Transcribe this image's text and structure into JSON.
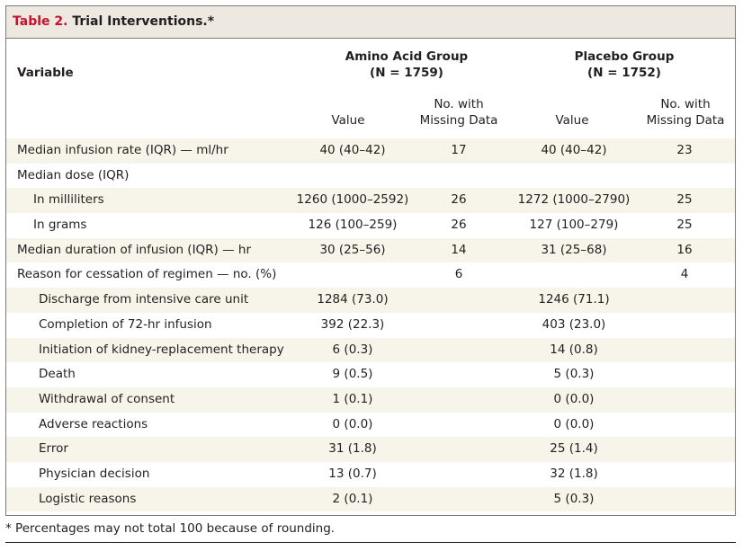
{
  "title": {
    "number": "Table 2.",
    "text": "Trial Interventions.*"
  },
  "columns": {
    "variable": "Variable",
    "amino_group": "Amino Acid Group",
    "amino_n": "(N = 1759)",
    "placebo_group": "Placebo Group",
    "placebo_n": "(N = 1752)",
    "value": "Value",
    "missing_line1": "No. with",
    "missing_line2": "Missing Data"
  },
  "rows": [
    {
      "label": "Median infusion rate (IQR) — ml/hr",
      "aa_value": "40 (40–42)",
      "aa_missing": "17",
      "pl_value": "40 (40–42)",
      "pl_missing": "23"
    },
    {
      "label": "Median dose (IQR)",
      "aa_value": "",
      "aa_missing": "",
      "pl_value": "",
      "pl_missing": ""
    },
    {
      "label": "In milliliters",
      "aa_value": "1260 (1000–2592)",
      "aa_missing": "26",
      "pl_value": "1272 (1000–2790)",
      "pl_missing": "25"
    },
    {
      "label": "In grams",
      "aa_value": "126 (100–259)",
      "aa_missing": "26",
      "pl_value": "127 (100–279)",
      "pl_missing": "25"
    },
    {
      "label": "Median duration of infusion (IQR) — hr",
      "aa_value": "30 (25–56)",
      "aa_missing": "14",
      "pl_value": "31 (25–68)",
      "pl_missing": "16"
    },
    {
      "label": "Reason for cessation of regimen — no. (%)",
      "aa_value": "",
      "aa_missing": "6",
      "pl_value": "",
      "pl_missing": "4"
    },
    {
      "label": "Discharge from intensive care unit",
      "aa_value": "1284 (73.0)",
      "aa_missing": "",
      "pl_value": "1246 (71.1)",
      "pl_missing": ""
    },
    {
      "label": "Completion of 72-hr infusion",
      "aa_value": "392 (22.3)",
      "aa_missing": "",
      "pl_value": "403 (23.0)",
      "pl_missing": ""
    },
    {
      "label": "Initiation of kidney-replacement therapy",
      "aa_value": "6 (0.3)",
      "aa_missing": "",
      "pl_value": "14 (0.8)",
      "pl_missing": ""
    },
    {
      "label": "Death",
      "aa_value": "9 (0.5)",
      "aa_missing": "",
      "pl_value": "5 (0.3)",
      "pl_missing": ""
    },
    {
      "label": "Withdrawal of consent",
      "aa_value": "1 (0.1)",
      "aa_missing": "",
      "pl_value": "0 (0.0)",
      "pl_missing": ""
    },
    {
      "label": "Adverse reactions",
      "aa_value": "0 (0.0)",
      "aa_missing": "",
      "pl_value": "0 (0.0)",
      "pl_missing": ""
    },
    {
      "label": "Error",
      "aa_value": "31 (1.8)",
      "aa_missing": "",
      "pl_value": "25 (1.4)",
      "pl_missing": ""
    },
    {
      "label": "Physician decision",
      "aa_value": "13 (0.7)",
      "aa_missing": "",
      "pl_value": "32 (1.8)",
      "pl_missing": ""
    },
    {
      "label": "Logistic reasons",
      "aa_value": "2 (0.1)",
      "aa_missing": "",
      "pl_value": "5 (0.3)",
      "pl_missing": ""
    }
  ],
  "footnote": "* Percentages may not total 100 because of rounding.",
  "colors": {
    "title_number": "#c8102e",
    "title_band": "#ede9e0",
    "row_shade": "#f7f4ea",
    "border": "#7a7a7a"
  }
}
